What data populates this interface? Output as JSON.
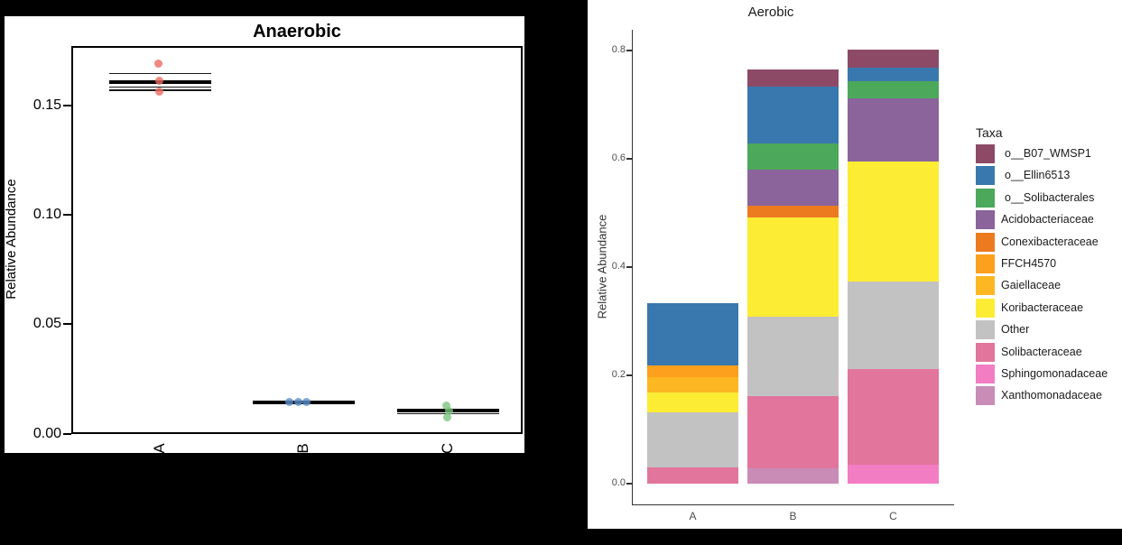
{
  "chart_data": [
    {
      "type": "boxplot",
      "title": "Anaerobic",
      "ylabel": "Relative Abundance",
      "categories": [
        "A",
        "B",
        "C"
      ],
      "y_ticks": [
        "0.00",
        "0.05",
        "0.10",
        "0.15"
      ],
      "ylim": [
        0,
        0.178
      ],
      "grid": false,
      "groups": [
        {
          "category": "A",
          "point_color": "#ED6A63",
          "median": 0.1606,
          "lines": [
            0.1647,
            0.1585,
            0.1571
          ],
          "points": [
            {
              "dx": -1.5,
              "value": 0.169
            },
            {
              "dx": -1.0,
              "value": 0.1613
            },
            {
              "dx": -1.0,
              "value": 0.1565
            }
          ]
        },
        {
          "category": "B",
          "point_color": "#5D8FCB",
          "median": 0.0145,
          "lines": [],
          "points": [
            {
              "dx": -16,
              "value": 0.0146
            },
            {
              "dx": -6,
              "value": 0.0146
            },
            {
              "dx": 3.5,
              "value": 0.0146
            }
          ]
        },
        {
          "category": "C",
          "point_color": "#7CC47F",
          "median": 0.0105,
          "lines": [
            0.0092
          ],
          "points": [
            {
              "dx": -2,
              "value": 0.0127
            },
            {
              "dx": 1,
              "value": 0.0105
            },
            {
              "dx": -1,
              "value": 0.0075
            }
          ]
        }
      ]
    },
    {
      "type": "bar",
      "stacked": true,
      "title": "Aerobic",
      "ylabel": "Relative Abundance",
      "categories": [
        "A",
        "B",
        "C"
      ],
      "y_ticks": [
        "0.0",
        "0.2",
        "0.4",
        "0.6",
        "0.8"
      ],
      "ylim": [
        0,
        0.85
      ],
      "grid": false,
      "legend_title": "Taxa",
      "legend_position": "right",
      "taxa": [
        {
          "name": "o__B07_WMSP1",
          "color": "#8D4A67"
        },
        {
          "name": "o__Ellin6513",
          "color": "#3878AE"
        },
        {
          "name": "o__Solibacterales",
          "color": "#4CA85A"
        },
        {
          "name": "Acidobacteriaceae",
          "color": "#8A649B"
        },
        {
          "name": "Conexibacteraceae",
          "color": "#EC7B20"
        },
        {
          "name": "FFCH4570",
          "color": "#FCA01D"
        },
        {
          "name": "Gaiellaceae",
          "color": "#FCB722"
        },
        {
          "name": "Koribacteraceae",
          "color": "#FCEC34"
        },
        {
          "name": "Other",
          "color": "#C2C2C2"
        },
        {
          "name": "Solibacteraceae",
          "color": "#E2759B"
        },
        {
          "name": "Sphingomonadaceae",
          "color": "#F27DC3"
        },
        {
          "name": "Xanthomonadaceae",
          "color": "#C88CB7"
        }
      ],
      "series": [
        {
          "name": "o__B07_WMSP1",
          "values": [
            0,
            0.031,
            0.033
          ]
        },
        {
          "name": "o__Ellin6513",
          "values": [
            0.115,
            0.106,
            0.025
          ]
        },
        {
          "name": "o__Solibacterales",
          "values": [
            0,
            0.048,
            0.033
          ]
        },
        {
          "name": "Acidobacteriaceae",
          "values": [
            0,
            0.066,
            0.116
          ]
        },
        {
          "name": "Conexibacteraceae",
          "values": [
            0,
            0.022,
            0
          ]
        },
        {
          "name": "FFCH4570",
          "values": [
            0.022,
            0,
            0
          ]
        },
        {
          "name": "Gaiellaceae",
          "values": [
            0.028,
            0,
            0
          ]
        },
        {
          "name": "Koribacteraceae",
          "values": [
            0.036,
            0.183,
            0.221
          ]
        },
        {
          "name": "Other",
          "values": [
            0.102,
            0.147,
            0.162
          ]
        },
        {
          "name": "Solibacteraceae",
          "values": [
            0.03,
            0.134,
            0.177
          ]
        },
        {
          "name": "Sphingomonadaceae",
          "values": [
            0,
            0,
            0.035
          ]
        },
        {
          "name": "Xanthomonadaceae",
          "values": [
            0,
            0.028,
            0
          ]
        }
      ],
      "bar_totals": [
        0.333,
        0.765,
        0.802
      ]
    }
  ]
}
